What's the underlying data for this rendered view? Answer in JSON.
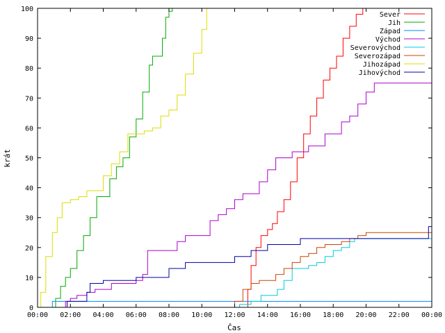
{
  "chart_data": {
    "type": "line",
    "xlabel": "Čas",
    "ylabel": "krát",
    "xlim": [
      0,
      24
    ],
    "ylim": [
      0,
      100
    ],
    "grid": false,
    "legend_position": "top-right",
    "x_ticks": [
      {
        "value": 0,
        "label": "00:00"
      },
      {
        "value": 2,
        "label": "02:00"
      },
      {
        "value": 4,
        "label": "04:00"
      },
      {
        "value": 6,
        "label": "06:00"
      },
      {
        "value": 8,
        "label": "08:00"
      },
      {
        "value": 10,
        "label": "10:00"
      },
      {
        "value": 12,
        "label": "12:00"
      },
      {
        "value": 14,
        "label": "14:00"
      },
      {
        "value": 16,
        "label": "16:00"
      },
      {
        "value": 18,
        "label": "18:00"
      },
      {
        "value": 20,
        "label": "20:00"
      },
      {
        "value": 22,
        "label": "22:00"
      },
      {
        "value": 24,
        "label": "00:00"
      }
    ],
    "y_ticks": [
      0,
      10,
      20,
      30,
      40,
      50,
      60,
      70,
      80,
      90,
      100
    ],
    "series": [
      {
        "name": "Sever",
        "color": "#ff0000",
        "x": [
          0,
          12.6,
          12.8,
          13.0,
          13.3,
          13.6,
          14.0,
          14.3,
          14.6,
          15.0,
          15.4,
          15.8,
          16.2,
          16.6,
          17.0,
          17.4,
          17.8,
          18.2,
          18.6,
          19.0,
          19.4,
          19.8,
          20.0,
          24
        ],
        "y": [
          0,
          0,
          6,
          14,
          20,
          24,
          26,
          28,
          32,
          36,
          42,
          50,
          58,
          64,
          70,
          76,
          80,
          84,
          90,
          94,
          98,
          100,
          100,
          100
        ]
      },
      {
        "name": "Jih",
        "color": "#00aa00",
        "x": [
          0,
          0.9,
          1.1,
          1.4,
          1.7,
          2.0,
          2.4,
          2.8,
          3.2,
          3.6,
          4.0,
          4.4,
          4.8,
          5.2,
          5.6,
          6.0,
          6.4,
          6.8,
          7.0,
          7.3,
          7.6,
          7.8,
          8.0,
          8.2,
          24
        ],
        "y": [
          0,
          0,
          3,
          7,
          10,
          13,
          19,
          24,
          30,
          37,
          37,
          43,
          47,
          50,
          57,
          63,
          72,
          81,
          84,
          84,
          90,
          97,
          99,
          100,
          100
        ]
      },
      {
        "name": "Západ",
        "color": "#0088ff",
        "x": [
          0,
          0.8,
          0.9,
          7.9,
          8.0,
          20.7,
          20.8,
          24
        ],
        "y": [
          0,
          0,
          2,
          2,
          2,
          2,
          2,
          2
        ]
      },
      {
        "name": "Východ",
        "color": "#aa00cc",
        "x": [
          0,
          1.5,
          1.7,
          2.0,
          2.4,
          3.0,
          3.5,
          4.0,
          4.5,
          5.0,
          5.5,
          6.0,
          6.4,
          6.7,
          7.0,
          7.5,
          8.0,
          8.5,
          9.0,
          9.5,
          10.0,
          10.5,
          11.0,
          11.5,
          12.0,
          12.5,
          13.0,
          13.5,
          14.0,
          14.5,
          15.0,
          15.5,
          16.0,
          16.5,
          17.0,
          17.5,
          18.0,
          18.5,
          19.0,
          19.5,
          20.0,
          20.5,
          21.0,
          21.5,
          24
        ],
        "y": [
          0,
          0,
          2,
          3,
          4,
          5,
          6,
          6,
          8,
          8,
          8,
          9,
          11,
          19,
          19,
          19,
          19,
          22,
          24,
          24,
          24,
          29,
          31,
          33,
          36,
          38,
          38,
          42,
          46,
          50,
          50,
          52,
          52,
          54,
          54,
          58,
          58,
          62,
          64,
          68,
          72,
          75,
          75,
          75,
          75
        ]
      },
      {
        "name": "Severovýchod",
        "color": "#00ccdd",
        "x": [
          0,
          12.0,
          12.3,
          13.0,
          13.6,
          14.0,
          14.6,
          15.0,
          15.5,
          16.0,
          16.5,
          17.0,
          17.5,
          18.0,
          18.5,
          19.0,
          19.3,
          20.0,
          24
        ],
        "y": [
          0,
          0,
          1,
          2,
          4,
          4,
          6,
          9,
          13,
          13,
          14,
          15,
          17,
          19,
          20,
          22,
          23,
          23,
          23
        ]
      },
      {
        "name": "Severozápad",
        "color": "#cc4400",
        "x": [
          0,
          11.8,
          12.0,
          12.5,
          13.0,
          13.5,
          14.0,
          14.5,
          15.0,
          15.5,
          16.0,
          16.5,
          17.0,
          17.5,
          18.0,
          18.5,
          19.0,
          19.5,
          20.0,
          24
        ],
        "y": [
          0,
          0,
          2,
          6,
          8,
          9,
          9,
          11,
          13,
          15,
          17,
          18,
          20,
          21,
          21,
          22,
          23,
          24,
          25,
          25
        ]
      },
      {
        "name": "Jihozápad",
        "color": "#dddd00",
        "x": [
          0,
          0.2,
          0.5,
          0.9,
          1.2,
          1.5,
          2.0,
          2.5,
          3.0,
          3.5,
          4.0,
          4.5,
          5.0,
          5.5,
          6.0,
          6.5,
          7.0,
          7.5,
          8.0,
          8.5,
          9.0,
          9.5,
          10.0,
          10.3,
          24
        ],
        "y": [
          0,
          5,
          17,
          25,
          30,
          35,
          36,
          37,
          39,
          39,
          44,
          48,
          52,
          58,
          58,
          59,
          60,
          64,
          66,
          71,
          78,
          85,
          93,
          100,
          100
        ]
      },
      {
        "name": "Jihovýchod",
        "color": "#0000aa",
        "x": [
          0,
          1.7,
          1.8,
          2.5,
          3.0,
          3.2,
          4.0,
          5.0,
          6.0,
          7.0,
          8.0,
          8.5,
          9.0,
          10.0,
          11.0,
          12.0,
          12.5,
          13.0,
          14.0,
          15.0,
          16.0,
          17.0,
          18.0,
          19.0,
          20.0,
          21.0,
          22.0,
          23.0,
          23.8,
          24
        ],
        "y": [
          0,
          0,
          2,
          2,
          5,
          8,
          9,
          9,
          10,
          10,
          13,
          13,
          15,
          15,
          15,
          17,
          17,
          19,
          21,
          21,
          23,
          23,
          23,
          23,
          23,
          23,
          23,
          23,
          27,
          32
        ]
      }
    ]
  }
}
